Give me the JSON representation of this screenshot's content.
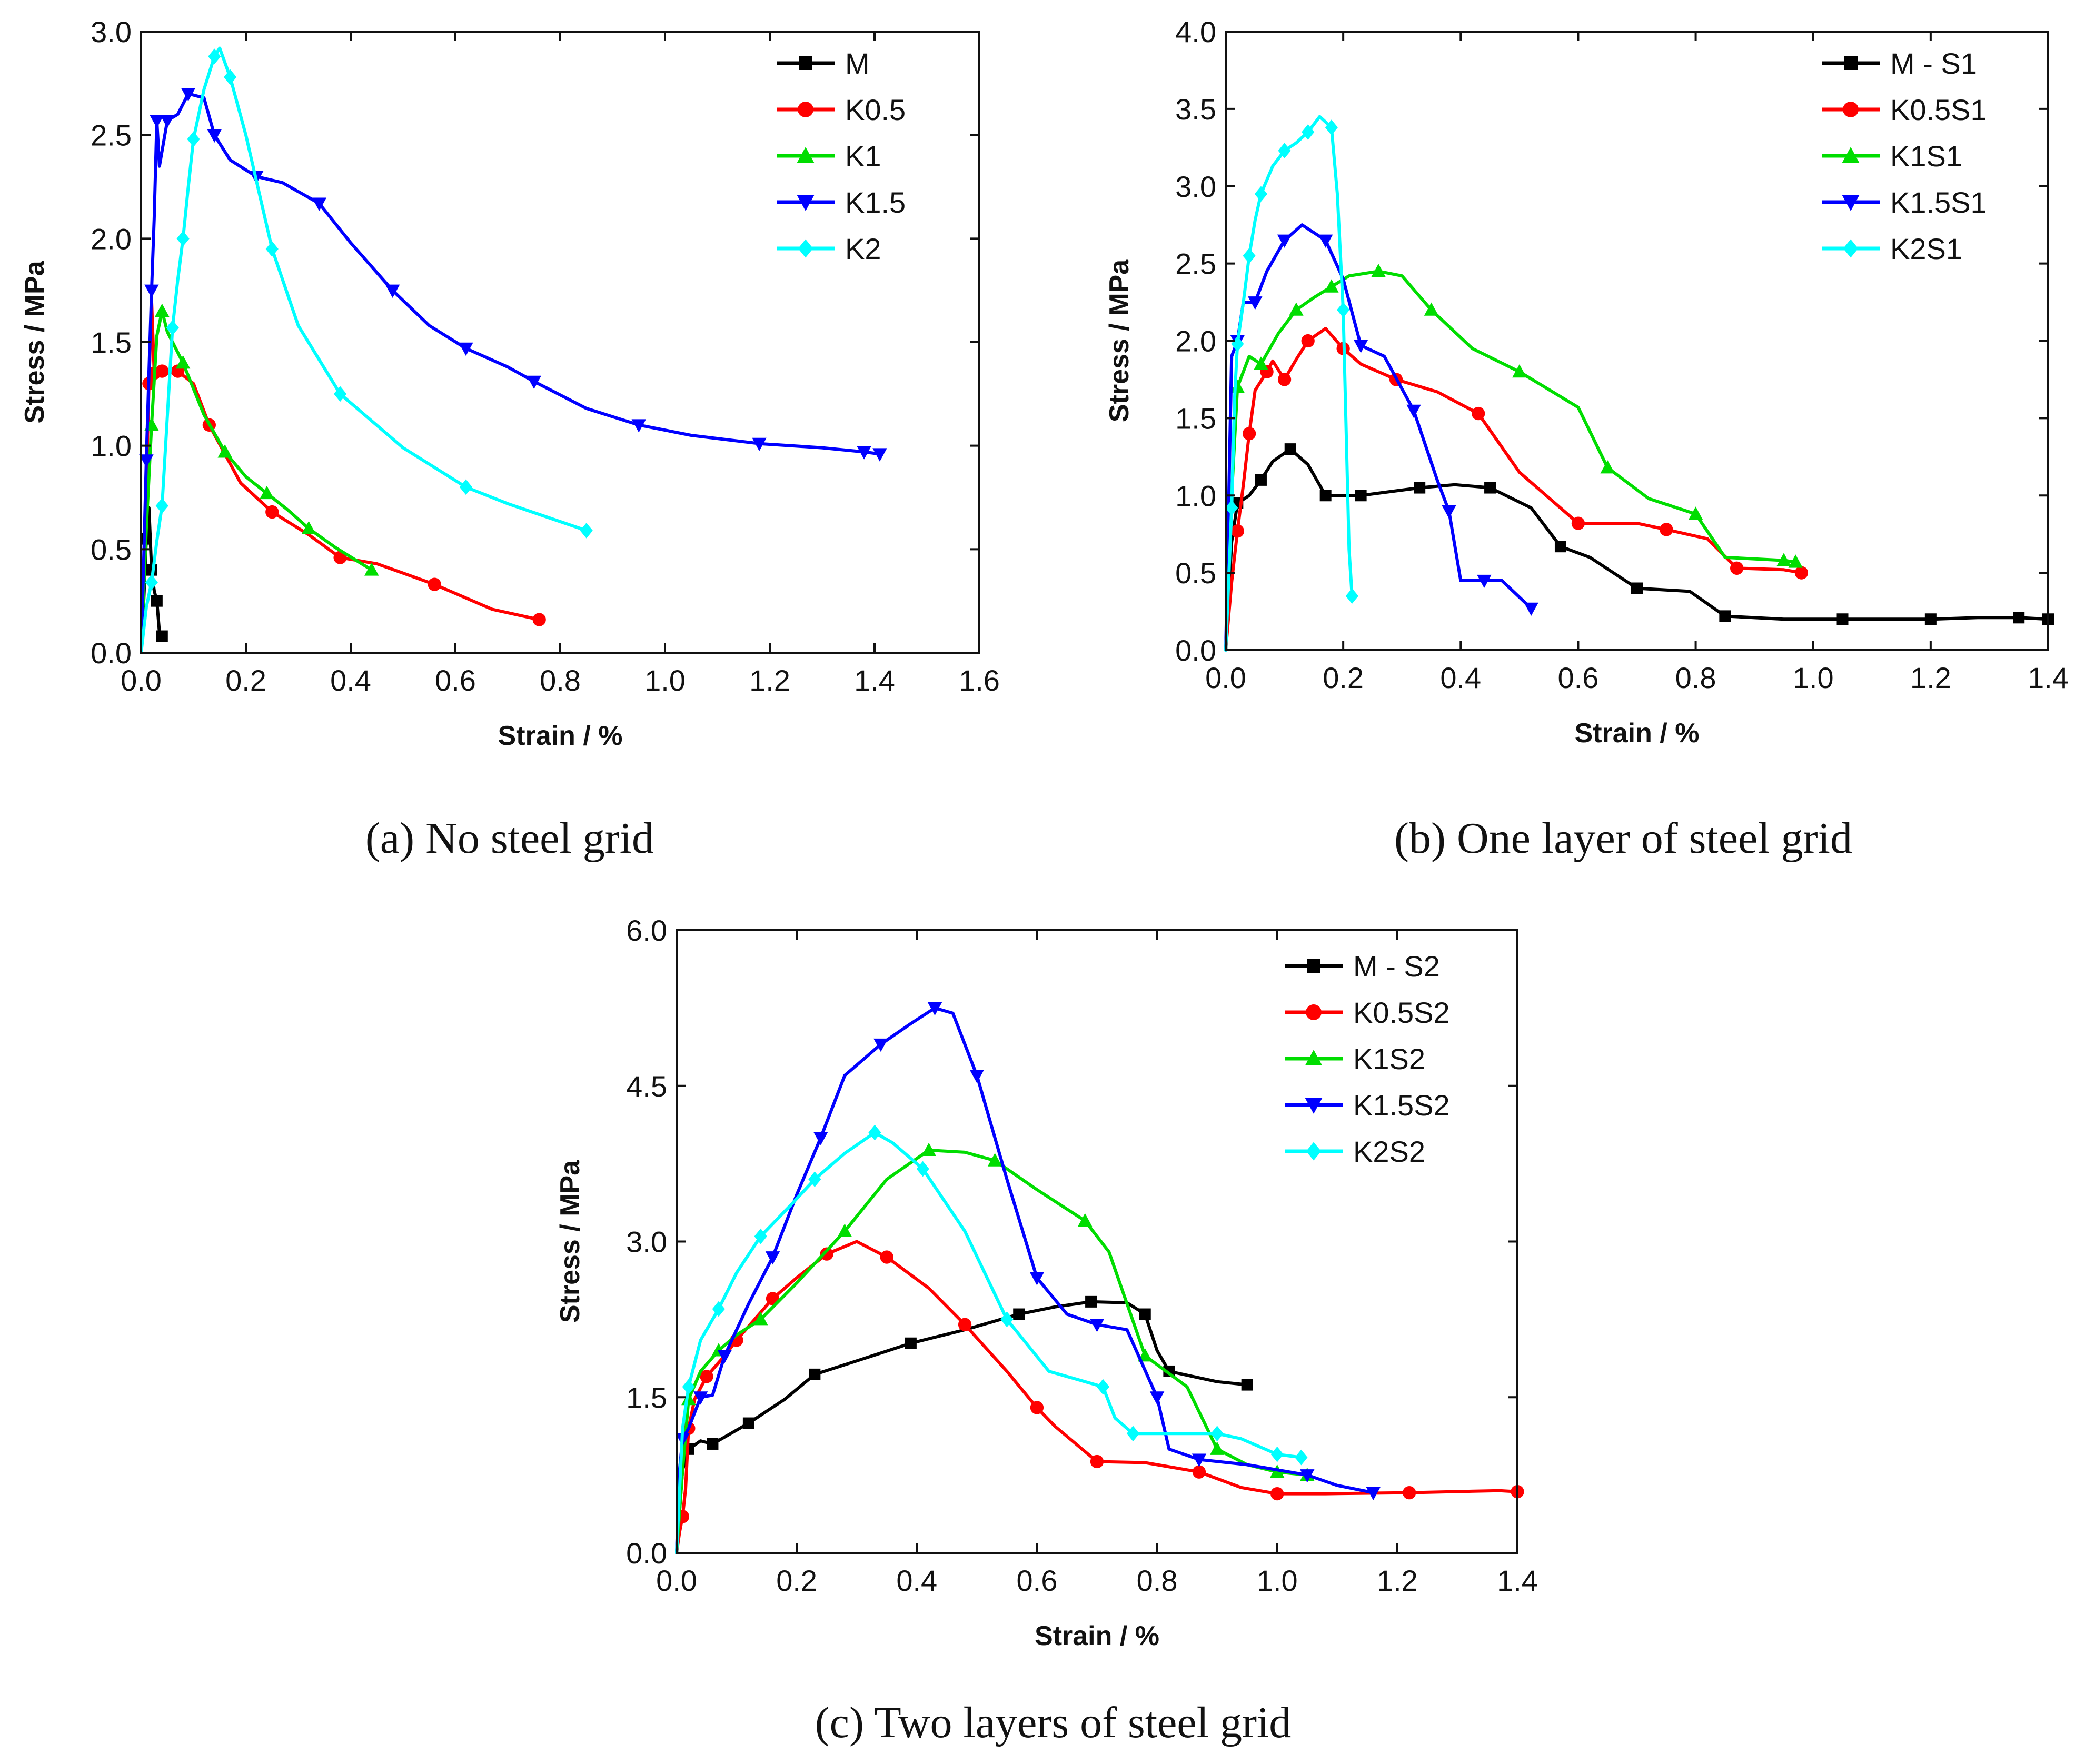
{
  "chart_data": [
    {
      "type": "line",
      "caption": "(a) No steel grid",
      "xlabel": "Strain / %",
      "ylabel": "Stress / MPa",
      "xlim": [
        0.0,
        1.6
      ],
      "ylim": [
        0.0,
        3.0
      ],
      "xticks": [
        "0.0",
        "0.2",
        "0.4",
        "0.6",
        "0.8",
        "1.0",
        "1.2",
        "1.4",
        "1.6"
      ],
      "yticks": [
        "0.0",
        "0.5",
        "1.0",
        "1.5",
        "2.0",
        "2.5",
        "3.0"
      ],
      "legend_position": "top-right",
      "series": [
        {
          "name": "M",
          "color": "#000000",
          "marker": "square",
          "x": [
            0,
            0.005,
            0.01,
            0.015,
            0.02,
            0.025,
            0.03,
            0.035,
            0.04
          ],
          "y": [
            0,
            0.25,
            0.55,
            0.7,
            0.4,
            0.3,
            0.25,
            0.1,
            0.08
          ]
        },
        {
          "name": "K0.5",
          "color": "#ff0000",
          "marker": "circle",
          "x": [
            0,
            0.01,
            0.015,
            0.02,
            0.025,
            0.03,
            0.04,
            0.05,
            0.07,
            0.1,
            0.13,
            0.19,
            0.25,
            0.32,
            0.38,
            0.45,
            0.56,
            0.67,
            0.76
          ],
          "y": [
            0,
            0.8,
            1.3,
            1.7,
            1.35,
            1.35,
            1.36,
            1.35,
            1.36,
            1.3,
            1.1,
            0.82,
            0.68,
            0.57,
            0.46,
            0.43,
            0.33,
            0.21,
            0.16
          ]
        },
        {
          "name": "K1",
          "color": "#00dd00",
          "marker": "triangle",
          "x": [
            0,
            0.01,
            0.02,
            0.03,
            0.04,
            0.05,
            0.08,
            0.12,
            0.16,
            0.2,
            0.24,
            0.28,
            0.32,
            0.37,
            0.44
          ],
          "y": [
            0,
            0.6,
            1.1,
            1.53,
            1.65,
            1.55,
            1.4,
            1.15,
            0.97,
            0.85,
            0.77,
            0.69,
            0.6,
            0.51,
            0.4
          ]
        },
        {
          "name": "K1.5",
          "color": "#0000ff",
          "marker": "triangle-down",
          "x": [
            0,
            0.005,
            0.01,
            0.015,
            0.02,
            0.025,
            0.03,
            0.035,
            0.05,
            0.07,
            0.09,
            0.12,
            0.14,
            0.17,
            0.22,
            0.27,
            0.34,
            0.4,
            0.48,
            0.55,
            0.62,
            0.7,
            0.75,
            0.85,
            0.95,
            1.05,
            1.18,
            1.3,
            1.38,
            1.41
          ],
          "y": [
            0,
            0.45,
            0.93,
            1.35,
            1.75,
            2.1,
            2.57,
            2.35,
            2.57,
            2.6,
            2.7,
            2.68,
            2.5,
            2.38,
            2.3,
            2.27,
            2.17,
            1.98,
            1.75,
            1.58,
            1.47,
            1.38,
            1.31,
            1.18,
            1.1,
            1.05,
            1.01,
            0.99,
            0.97,
            0.96
          ]
        },
        {
          "name": "K2",
          "color": "#00ffff",
          "marker": "diamond",
          "x": [
            0,
            0.01,
            0.02,
            0.03,
            0.04,
            0.05,
            0.06,
            0.07,
            0.08,
            0.09,
            0.1,
            0.12,
            0.14,
            0.15,
            0.17,
            0.2,
            0.25,
            0.3,
            0.38,
            0.5,
            0.62,
            0.7,
            0.85
          ],
          "y": [
            0,
            0.22,
            0.34,
            0.54,
            0.71,
            1.14,
            1.57,
            1.8,
            2.0,
            2.25,
            2.48,
            2.72,
            2.88,
            2.92,
            2.78,
            2.5,
            1.95,
            1.58,
            1.25,
            0.99,
            0.8,
            0.72,
            0.59
          ]
        }
      ]
    },
    {
      "type": "line",
      "caption": "(b) One layer of steel grid",
      "xlabel": "Strain / %",
      "ylabel": "Stress / MPa",
      "xlim": [
        0.0,
        1.4
      ],
      "ylim": [
        0.0,
        4.0
      ],
      "xticks": [
        "0.0",
        "0.2",
        "0.4",
        "0.6",
        "0.8",
        "1.0",
        "1.2",
        "1.4"
      ],
      "yticks": [
        "0.0",
        "0.5",
        "1.0",
        "1.5",
        "2.0",
        "2.5",
        "3.0",
        "3.5",
        "4.0"
      ],
      "legend_position": "top-right",
      "series": [
        {
          "name": "M - S1",
          "color": "#000000",
          "marker": "square",
          "x": [
            0,
            0.01,
            0.02,
            0.04,
            0.06,
            0.08,
            0.11,
            0.14,
            0.17,
            0.2,
            0.23,
            0.27,
            0.33,
            0.39,
            0.45,
            0.52,
            0.57,
            0.62,
            0.7,
            0.79,
            0.85,
            0.95,
            1.05,
            1.12,
            1.2,
            1.28,
            1.35,
            1.4
          ],
          "y": [
            0,
            0.7,
            0.95,
            1.0,
            1.1,
            1.22,
            1.3,
            1.2,
            1.0,
            1.0,
            1.0,
            1.02,
            1.05,
            1.07,
            1.05,
            0.92,
            0.67,
            0.6,
            0.4,
            0.38,
            0.22,
            0.2,
            0.2,
            0.2,
            0.2,
            0.21,
            0.21,
            0.2
          ]
        },
        {
          "name": "K0.5S1",
          "color": "#ff0000",
          "marker": "circle",
          "x": [
            0,
            0.01,
            0.02,
            0.03,
            0.04,
            0.05,
            0.07,
            0.08,
            0.1,
            0.12,
            0.14,
            0.17,
            0.2,
            0.23,
            0.29,
            0.36,
            0.43,
            0.5,
            0.6,
            0.7,
            0.75,
            0.82,
            0.87,
            0.95,
            0.98
          ],
          "y": [
            0,
            0.44,
            0.77,
            1.07,
            1.4,
            1.68,
            1.8,
            1.87,
            1.75,
            1.88,
            2.0,
            2.08,
            1.95,
            1.85,
            1.75,
            1.67,
            1.53,
            1.15,
            0.82,
            0.82,
            0.78,
            0.72,
            0.53,
            0.52,
            0.5
          ]
        },
        {
          "name": "K1S1",
          "color": "#00dd00",
          "marker": "triangle",
          "x": [
            0,
            0.01,
            0.02,
            0.04,
            0.06,
            0.09,
            0.12,
            0.15,
            0.18,
            0.21,
            0.26,
            0.3,
            0.35,
            0.42,
            0.5,
            0.6,
            0.65,
            0.72,
            0.8,
            0.85,
            0.95,
            0.97
          ],
          "y": [
            0,
            1.0,
            1.7,
            1.9,
            1.85,
            2.05,
            2.2,
            2.28,
            2.35,
            2.42,
            2.45,
            2.42,
            2.2,
            1.95,
            1.8,
            1.57,
            1.18,
            0.98,
            0.88,
            0.6,
            0.58,
            0.57
          ]
        },
        {
          "name": "K1.5S1",
          "color": "#0000ff",
          "marker": "triangle-down",
          "x": [
            0,
            0.01,
            0.02,
            0.03,
            0.05,
            0.07,
            0.1,
            0.13,
            0.17,
            0.2,
            0.23,
            0.27,
            0.32,
            0.36,
            0.38,
            0.4,
            0.44,
            0.47,
            0.52
          ],
          "y": [
            0,
            1.9,
            2.0,
            2.25,
            2.25,
            2.45,
            2.65,
            2.75,
            2.65,
            2.4,
            1.97,
            1.9,
            1.55,
            1.1,
            0.9,
            0.45,
            0.45,
            0.45,
            0.27
          ]
        },
        {
          "name": "K2S1",
          "color": "#00ffff",
          "marker": "diamond",
          "x": [
            0,
            0.005,
            0.01,
            0.015,
            0.02,
            0.03,
            0.04,
            0.05,
            0.06,
            0.08,
            0.1,
            0.12,
            0.14,
            0.16,
            0.18,
            0.19,
            0.2,
            0.21,
            0.215
          ],
          "y": [
            0,
            0.45,
            0.92,
            1.62,
            1.98,
            2.25,
            2.55,
            2.78,
            2.95,
            3.13,
            3.23,
            3.28,
            3.35,
            3.45,
            3.38,
            2.95,
            2.2,
            0.65,
            0.35
          ]
        }
      ]
    },
    {
      "type": "line",
      "caption": "(c) Two layers of steel grid",
      "xlabel": "Strain / %",
      "ylabel": "Stress / MPa",
      "xlim": [
        0.0,
        1.4
      ],
      "ylim": [
        0.0,
        6.0
      ],
      "xticks": [
        "0.0",
        "0.2",
        "0.4",
        "0.6",
        "0.8",
        "1.0",
        "1.2",
        "1.4"
      ],
      "yticks": [
        "0.0",
        "1.5",
        "3.0",
        "4.5",
        "6.0"
      ],
      "legend_position": "top-right",
      "series": [
        {
          "name": "M - S2",
          "color": "#000000",
          "marker": "square",
          "x": [
            0,
            0.01,
            0.02,
            0.04,
            0.06,
            0.09,
            0.12,
            0.18,
            0.23,
            0.3,
            0.39,
            0.48,
            0.57,
            0.63,
            0.69,
            0.75,
            0.78,
            0.8,
            0.82,
            0.9,
            0.95
          ],
          "y": [
            0,
            0.8,
            1.0,
            1.08,
            1.05,
            1.15,
            1.25,
            1.48,
            1.72,
            1.85,
            2.02,
            2.15,
            2.3,
            2.37,
            2.42,
            2.41,
            2.3,
            1.95,
            1.75,
            1.65,
            1.62
          ]
        },
        {
          "name": "K0.5S2",
          "color": "#ff0000",
          "marker": "circle",
          "x": [
            0,
            0.005,
            0.01,
            0.015,
            0.02,
            0.03,
            0.05,
            0.08,
            0.1,
            0.13,
            0.16,
            0.2,
            0.25,
            0.3,
            0.35,
            0.42,
            0.48,
            0.55,
            0.6,
            0.63,
            0.7,
            0.78,
            0.87,
            0.94,
            1.0,
            1.08,
            1.22,
            1.37,
            1.4
          ],
          "y": [
            0,
            0.2,
            0.35,
            0.62,
            1.2,
            1.48,
            1.7,
            1.9,
            2.05,
            2.25,
            2.45,
            2.65,
            2.88,
            3.0,
            2.85,
            2.55,
            2.2,
            1.75,
            1.4,
            1.22,
            0.88,
            0.87,
            0.78,
            0.63,
            0.57,
            0.57,
            0.58,
            0.6,
            0.59
          ]
        },
        {
          "name": "K1S2",
          "color": "#00dd00",
          "marker": "triangle",
          "x": [
            0,
            0.01,
            0.02,
            0.04,
            0.07,
            0.1,
            0.14,
            0.2,
            0.28,
            0.35,
            0.42,
            0.48,
            0.53,
            0.6,
            0.68,
            0.72,
            0.78,
            0.85,
            0.9,
            0.95,
            1.0,
            1.05
          ],
          "y": [
            0,
            0.8,
            1.48,
            1.75,
            1.95,
            2.1,
            2.25,
            2.6,
            3.1,
            3.6,
            3.88,
            3.86,
            3.78,
            3.5,
            3.2,
            2.9,
            1.9,
            1.6,
            1.0,
            0.85,
            0.78,
            0.75
          ]
        },
        {
          "name": "K1.5S2",
          "color": "#0000ff",
          "marker": "triangle-down",
          "x": [
            0,
            0.005,
            0.01,
            0.02,
            0.04,
            0.06,
            0.08,
            0.12,
            0.16,
            0.2,
            0.24,
            0.28,
            0.34,
            0.39,
            0.43,
            0.46,
            0.5,
            0.55,
            0.6,
            0.65,
            0.7,
            0.75,
            0.8,
            0.82,
            0.87,
            0.95,
            1.05,
            1.1,
            1.16
          ],
          "y": [
            0,
            0.8,
            1.1,
            1.2,
            1.5,
            1.52,
            1.9,
            2.4,
            2.85,
            3.45,
            4.0,
            4.6,
            4.9,
            5.1,
            5.25,
            5.2,
            4.6,
            3.6,
            2.65,
            2.3,
            2.2,
            2.15,
            1.5,
            1.0,
            0.9,
            0.85,
            0.75,
            0.65,
            0.58
          ]
        },
        {
          "name": "K2S2",
          "color": "#00ffff",
          "marker": "diamond",
          "x": [
            0,
            0.01,
            0.02,
            0.04,
            0.07,
            0.1,
            0.14,
            0.19,
            0.23,
            0.28,
            0.33,
            0.36,
            0.41,
            0.48,
            0.55,
            0.62,
            0.71,
            0.73,
            0.76,
            0.83,
            0.9,
            0.94,
            1.0,
            1.04
          ],
          "y": [
            0,
            1.2,
            1.6,
            2.05,
            2.35,
            2.7,
            3.05,
            3.35,
            3.6,
            3.85,
            4.05,
            3.95,
            3.7,
            3.1,
            2.25,
            1.75,
            1.6,
            1.3,
            1.15,
            1.15,
            1.15,
            1.1,
            0.95,
            0.92
          ]
        }
      ]
    }
  ]
}
